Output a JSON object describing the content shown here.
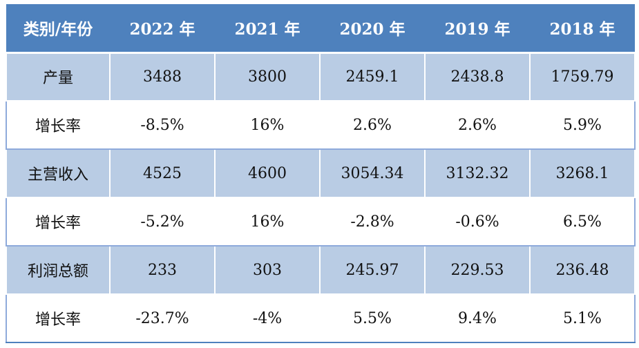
{
  "table": {
    "header": [
      "类别/年份",
      "2022 年",
      "2021 年",
      "2020 年",
      "2019 年",
      "2018 年"
    ],
    "rows": [
      {
        "label": "产量",
        "values": [
          "3488",
          "3800",
          "2459.1",
          "2438.8",
          "1759.79"
        ]
      },
      {
        "label": "增长率",
        "values": [
          "-8.5%",
          "16%",
          "2.6%",
          "2.6%",
          "5.9%"
        ]
      },
      {
        "label": "主营收入",
        "values": [
          "4525",
          "4600",
          "3054.34",
          "3132.32",
          "3268.1"
        ]
      },
      {
        "label": "增长率",
        "values": [
          "-5.2%",
          "16%",
          "-2.8%",
          "-0.6%",
          "6.5%"
        ]
      },
      {
        "label": "利润总额",
        "values": [
          "233",
          "303",
          "245.97",
          "229.53",
          "236.48"
        ]
      },
      {
        "label": "增长率",
        "values": [
          "-23.7%",
          "-4%",
          "5.5%",
          "9.4%",
          "5.1%"
        ]
      }
    ]
  },
  "colors": {
    "header_bg": "#4e81bd",
    "band_bg": "#b9cce4",
    "plain_bg": "#ffffff",
    "header_text": "#ffffff"
  }
}
